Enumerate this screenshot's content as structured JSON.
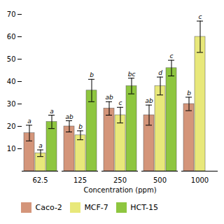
{
  "chart_data": {
    "type": "bar",
    "categories": [
      "62.5",
      "125",
      "250",
      "500",
      "1000"
    ],
    "series": [
      {
        "name": "Caco-2",
        "color": "#d4957a",
        "values": [
          17,
          20,
          28,
          25,
          30
        ],
        "errors": [
          3.5,
          2.5,
          3,
          4.5,
          3
        ],
        "labels": [
          "a",
          "ab",
          "ab",
          "ab",
          "b"
        ]
      },
      {
        "name": "MCF-7",
        "color": "#e8e87a",
        "values": [
          8,
          16,
          25,
          38,
          60
        ],
        "errors": [
          1.5,
          2,
          3.5,
          4,
          7
        ],
        "labels": [
          "a",
          "b",
          "c",
          "d",
          "c"
        ]
      },
      {
        "name": "HCT-15",
        "color": "#8ec63f",
        "values": [
          22,
          36,
          38,
          46,
          0
        ],
        "errors": [
          3,
          5,
          3.5,
          3.5,
          0
        ],
        "labels": [
          "a",
          "b",
          "bc",
          "c",
          null
        ]
      }
    ],
    "xlabel": "Concentration (ppm)",
    "ylim": [
      0,
      70
    ],
    "yticks": [
      10,
      20,
      30,
      40,
      50,
      60,
      70
    ],
    "grid": false,
    "legend": "bottom"
  }
}
